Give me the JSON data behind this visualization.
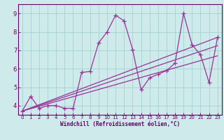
{
  "xlabel": "Windchill (Refroidissement éolien,°C)",
  "background_color": "#ceeaea",
  "line_color": "#993399",
  "axis_color": "#660066",
  "grid_color": "#aad4d4",
  "xlim": [
    -0.5,
    23.5
  ],
  "ylim": [
    3.5,
    9.5
  ],
  "yticks": [
    4,
    5,
    6,
    7,
    8,
    9
  ],
  "xticks": [
    0,
    1,
    2,
    3,
    4,
    5,
    6,
    7,
    8,
    9,
    10,
    11,
    12,
    13,
    14,
    15,
    16,
    17,
    18,
    19,
    20,
    21,
    22,
    23
  ],
  "series_main": {
    "x": [
      0,
      1,
      2,
      3,
      4,
      5,
      6,
      7,
      8,
      9,
      10,
      11,
      12,
      13,
      14,
      15,
      16,
      17,
      18,
      19,
      20,
      21,
      22,
      23
    ],
    "y": [
      3.7,
      4.5,
      3.85,
      4.0,
      4.0,
      3.85,
      3.85,
      5.8,
      5.85,
      7.4,
      8.0,
      8.9,
      8.6,
      7.05,
      4.85,
      5.5,
      5.7,
      5.9,
      6.3,
      9.0,
      7.3,
      6.75,
      5.25,
      7.7
    ]
  },
  "series_trends": [
    {
      "x": [
        0,
        23
      ],
      "y": [
        3.7,
        7.7
      ]
    },
    {
      "x": [
        0,
        23
      ],
      "y": [
        3.7,
        7.25
      ]
    },
    {
      "x": [
        0,
        23
      ],
      "y": [
        3.7,
        6.7
      ]
    }
  ]
}
